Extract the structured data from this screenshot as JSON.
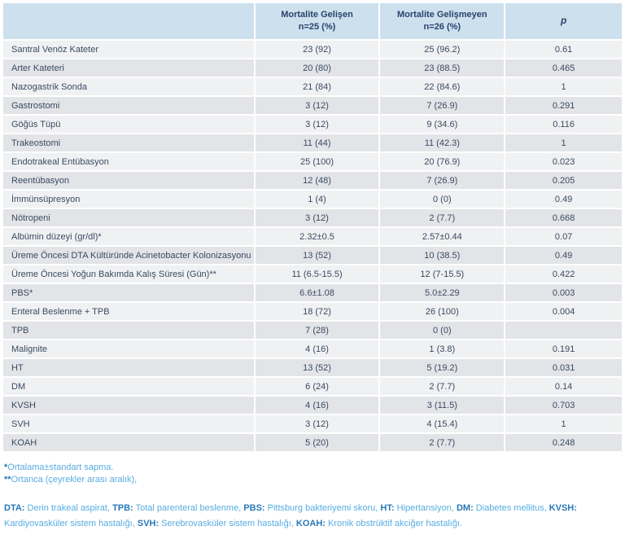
{
  "table": {
    "header": {
      "col_label": "",
      "col1_line1": "Mortalite Gelişen",
      "col1_line2": "n=25 (%)",
      "col2_line1": "Mortalite Gelişmeyen",
      "col2_line2": "n=26 (%)",
      "col_p": "p"
    },
    "rows": [
      {
        "label": "Santral Venöz Kateter",
        "c1": "23 (92)",
        "c2": "25 (96.2)",
        "p": "0.61"
      },
      {
        "label": "Arter Kateteri",
        "c1": "20 (80)",
        "c2": "23 (88.5)",
        "p": "0.465"
      },
      {
        "label": "Nazogastrik Sonda",
        "c1": "21 (84)",
        "c2": "22 (84.6)",
        "p": "1"
      },
      {
        "label": "Gastrostomi",
        "c1": "3 (12)",
        "c2": "7 (26.9)",
        "p": "0.291"
      },
      {
        "label": "Göğüs Tüpü",
        "c1": "3 (12)",
        "c2": "9 (34.6)",
        "p": "0.116"
      },
      {
        "label": "Trakeostomi",
        "c1": "11 (44)",
        "c2": "11 (42.3)",
        "p": "1"
      },
      {
        "label": "Endotrakeal Entübasyon",
        "c1": "25 (100)",
        "c2": "20 (76.9)",
        "p": "0.023"
      },
      {
        "label": "Reentübasyon",
        "c1": "12 (48)",
        "c2": "7 (26.9)",
        "p": "0.205"
      },
      {
        "label": "İmmünsüpresyon",
        "c1": "1 (4)",
        "c2": "0 (0)",
        "p": "0.49"
      },
      {
        "label": "Nötropeni",
        "c1": "3 (12)",
        "c2": "2 (7.7)",
        "p": "0.668"
      },
      {
        "label": "Albümin düzeyi (gr/dl)*",
        "c1": "2.32±0.5",
        "c2": "2.57±0.44",
        "p": "0.07"
      },
      {
        "label": "Üreme Öncesi DTA Kültüründe Acinetobacter Kolonizasyonu",
        "c1": "13 (52)",
        "c2": "10 (38.5)",
        "p": "0.49"
      },
      {
        "label": "Üreme Öncesi Yoğun Bakımda Kalış Süresi (Gün)**",
        "c1": "11 (6.5-15.5)",
        "c2": "12 (7-15.5)",
        "p": "0.422"
      },
      {
        "label": "PBS*",
        "c1": "6.6±1.08",
        "c2": "5.0±2.29",
        "p": "0.003"
      },
      {
        "label": "Enteral Beslenme + TPB",
        "c1": "18 (72)",
        "c2": "26 (100)",
        "p": "0.004"
      },
      {
        "label": "TPB",
        "c1": "7 (28)",
        "c2": "0 (0)",
        "p": ""
      },
      {
        "label": "Malignite",
        "c1": "4 (16)",
        "c2": "1 (3.8)",
        "p": "0.191"
      },
      {
        "label": "HT",
        "c1": "13 (52)",
        "c2": "5 (19.2)",
        "p": "0.031"
      },
      {
        "label": "DM",
        "c1": "6 (24)",
        "c2": "2 (7.7)",
        "p": "0.14"
      },
      {
        "label": "KVSH",
        "c1": "4 (16)",
        "c2": "3 (11.5)",
        "p": "0.703"
      },
      {
        "label": "SVH",
        "c1": "3 (12)",
        "c2": "4 (15.4)",
        "p": "1"
      },
      {
        "label": "KOAH",
        "c1": "5 (20)",
        "c2": "2 (7.7)",
        "p": "0.248"
      }
    ]
  },
  "footnotes": {
    "lines": [
      {
        "marker": "*",
        "text": "Ortalama±standart sapma."
      },
      {
        "marker": "**",
        "text": "Ortanca (çeyrekler arası aralık),"
      }
    ],
    "abbreviations": [
      {
        "abbr": "DTA:",
        "desc": "Derin trakeal aspirat,"
      },
      {
        "abbr": "TPB:",
        "desc": "Total parenteral beslenme,"
      },
      {
        "abbr": "PBS:",
        "desc": "Pittsburg bakteriyemi skoru,"
      },
      {
        "abbr": "HT:",
        "desc": "Hipertansiyon,"
      },
      {
        "abbr": "DM:",
        "desc": "Diabetes mellitus,"
      },
      {
        "abbr": "KVSH:",
        "desc": "Kardiyovasküler sistem hastalığı,"
      },
      {
        "abbr": "SVH:",
        "desc": "Serebrovasküler sistem hastalığı,"
      },
      {
        "abbr": "KOAH:",
        "desc": "Kronik obstrüktif akciğer hastalığı."
      }
    ]
  },
  "colors": {
    "header_bg": "#cde0ee",
    "row_light": "#f0f1f2",
    "row_dark": "#e3e4e7",
    "cell_text": "#3a4a63",
    "footnote_text": "#57ace1",
    "footnote_bold": "#2878b5"
  }
}
